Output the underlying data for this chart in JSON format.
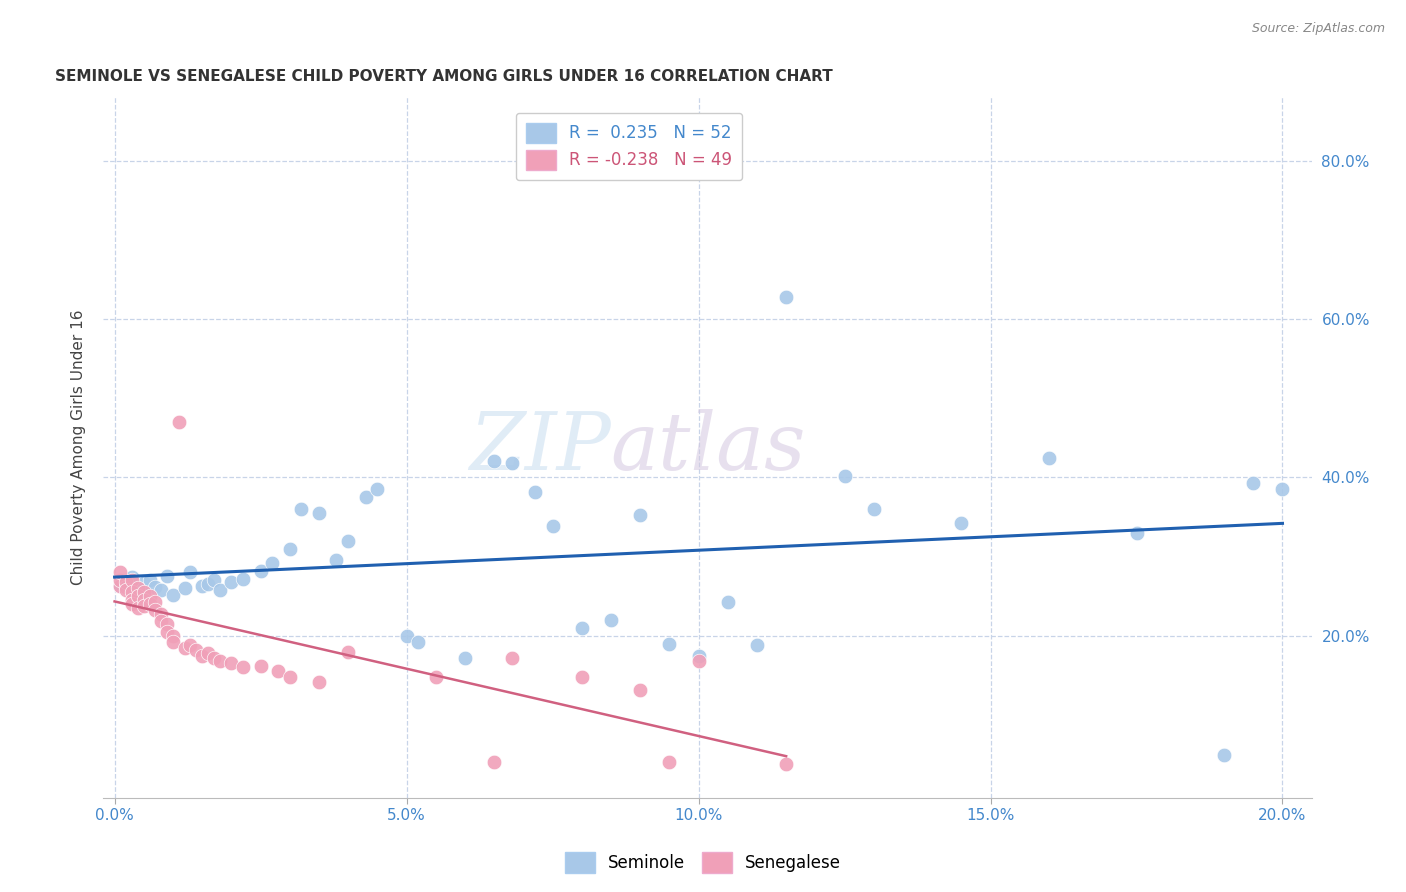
{
  "title": "SEMINOLE VS SENEGALESE CHILD POVERTY AMONG GIRLS UNDER 16 CORRELATION CHART",
  "source": "Source: ZipAtlas.com",
  "ylabel": "Child Poverty Among Girls Under 16",
  "xlabel": "",
  "xlim": [
    -0.002,
    0.205
  ],
  "ylim": [
    -0.005,
    0.88
  ],
  "xticks": [
    0.0,
    0.05,
    0.1,
    0.15,
    0.2
  ],
  "yticks_right": [
    0.2,
    0.4,
    0.6,
    0.8
  ],
  "seminole_color": "#a8c8e8",
  "senegalese_color": "#f0a0b8",
  "seminole_line_color": "#2060b0",
  "senegalese_line_color": "#d06080",
  "legend_R_seminole": "R =  0.235   N = 52",
  "legend_R_senegalese": "R = -0.238   N = 49",
  "watermark_zip": "ZIP",
  "watermark_atlas": "atlas",
  "background_color": "#ffffff",
  "grid_color": "#c8d4e8",
  "seminole_x": [
    0.001,
    0.002,
    0.003,
    0.003,
    0.004,
    0.005,
    0.005,
    0.006,
    0.007,
    0.008,
    0.009,
    0.01,
    0.012,
    0.013,
    0.015,
    0.016,
    0.017,
    0.018,
    0.02,
    0.022,
    0.025,
    0.027,
    0.03,
    0.032,
    0.035,
    0.038,
    0.04,
    0.043,
    0.045,
    0.05,
    0.052,
    0.06,
    0.065,
    0.068,
    0.072,
    0.075,
    0.08,
    0.085,
    0.09,
    0.095,
    0.1,
    0.105,
    0.11,
    0.115,
    0.125,
    0.13,
    0.145,
    0.16,
    0.175,
    0.19,
    0.195,
    0.2
  ],
  "seminole_y": [
    0.263,
    0.27,
    0.256,
    0.274,
    0.26,
    0.266,
    0.255,
    0.27,
    0.262,
    0.258,
    0.275,
    0.252,
    0.26,
    0.28,
    0.263,
    0.265,
    0.27,
    0.258,
    0.268,
    0.272,
    0.282,
    0.292,
    0.31,
    0.36,
    0.355,
    0.295,
    0.32,
    0.375,
    0.385,
    0.2,
    0.192,
    0.172,
    0.42,
    0.418,
    0.382,
    0.338,
    0.21,
    0.22,
    0.352,
    0.19,
    0.175,
    0.242,
    0.188,
    0.628,
    0.402,
    0.36,
    0.342,
    0.425,
    0.33,
    0.05,
    0.393,
    0.385
  ],
  "senegalese_x": [
    0.001,
    0.001,
    0.001,
    0.002,
    0.002,
    0.002,
    0.003,
    0.003,
    0.003,
    0.003,
    0.004,
    0.004,
    0.004,
    0.005,
    0.005,
    0.005,
    0.006,
    0.006,
    0.007,
    0.007,
    0.008,
    0.008,
    0.009,
    0.009,
    0.01,
    0.01,
    0.011,
    0.012,
    0.013,
    0.014,
    0.015,
    0.016,
    0.017,
    0.018,
    0.02,
    0.022,
    0.025,
    0.028,
    0.03,
    0.035,
    0.04,
    0.055,
    0.065,
    0.068,
    0.08,
    0.09,
    0.095,
    0.1,
    0.115
  ],
  "senegalese_y": [
    0.263,
    0.27,
    0.28,
    0.262,
    0.268,
    0.258,
    0.27,
    0.255,
    0.245,
    0.24,
    0.26,
    0.25,
    0.235,
    0.255,
    0.245,
    0.238,
    0.25,
    0.24,
    0.242,
    0.232,
    0.228,
    0.218,
    0.215,
    0.205,
    0.2,
    0.192,
    0.47,
    0.185,
    0.188,
    0.182,
    0.175,
    0.178,
    0.172,
    0.168,
    0.165,
    0.16,
    0.162,
    0.155,
    0.148,
    0.142,
    0.18,
    0.148,
    0.04,
    0.172,
    0.148,
    0.132,
    0.04,
    0.168,
    0.038
  ]
}
